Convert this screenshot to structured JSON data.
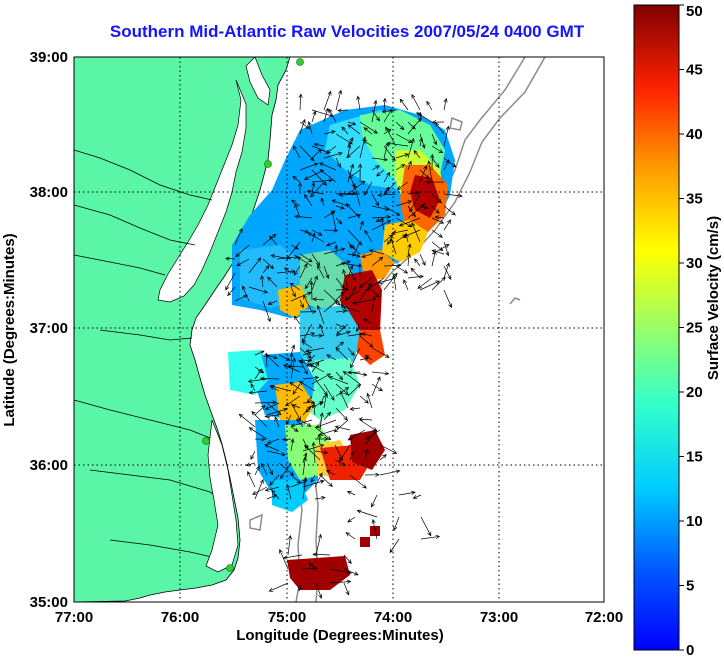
{
  "title": "Southern Mid-Atlantic Raw Velocities 2007/05/24 0400 GMT",
  "x_axis": {
    "label": "Longitude (Degrees:Minutes)",
    "ticks": [
      "77:00",
      "76:00",
      "75:00",
      "74:00",
      "73:00",
      "72:00"
    ]
  },
  "y_axis": {
    "label": "Latitude (Degrees:Minutes)",
    "ticks": [
      "39:00",
      "38:00",
      "37:00",
      "36:00",
      "35:00"
    ]
  },
  "colorbar": {
    "label": "Surface Velocity (cm/s)",
    "ticks": [
      "50",
      "45",
      "40",
      "35",
      "30",
      "25",
      "20",
      "15",
      "10",
      "5",
      "0"
    ],
    "range": [
      0,
      50
    ],
    "colormap": "jet"
  },
  "colors": {
    "title": "#1414ff",
    "land": "#5af5a6",
    "bathymetry": "#8c8c8c",
    "grid": "#000000"
  },
  "map": {
    "lon_range": [
      "77:00 W",
      "72:00 W"
    ],
    "lat_range": [
      "35:00 N",
      "39:00 N"
    ],
    "grid": "dotted",
    "vectors": "black arrows",
    "stations": "green dots"
  }
}
